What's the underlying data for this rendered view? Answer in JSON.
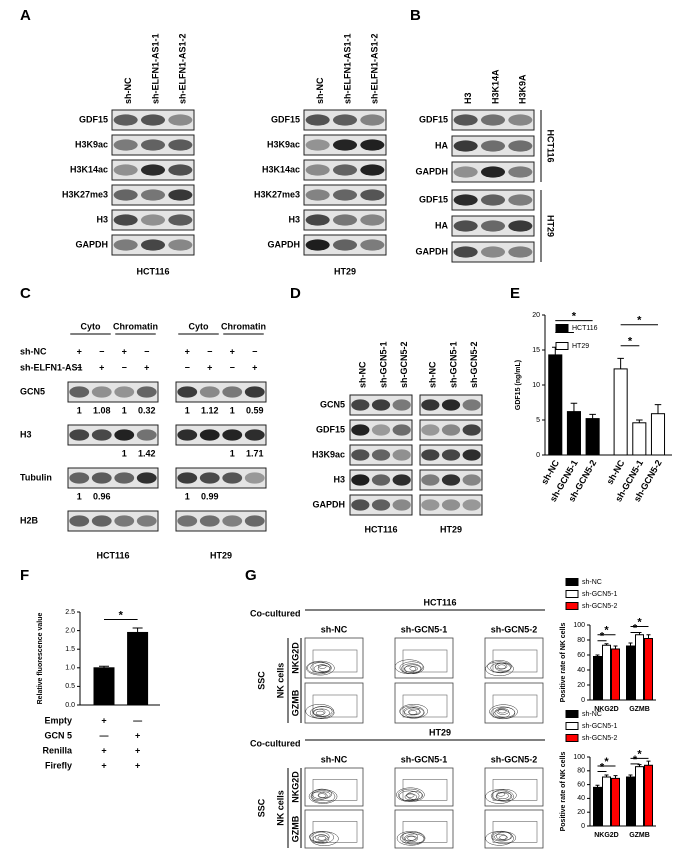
{
  "panels": {
    "A": {
      "label": "A",
      "blots": [
        {
          "columns": [
            "sh-NC",
            "sh-ELFN1-AS1-1",
            "sh-ELFN1-AS1-2"
          ],
          "rows": [
            "GDF15",
            "H3K9ac",
            "H3K14ac",
            "H3K27me3",
            "H3",
            "GAPDH"
          ],
          "cell_line": "HCT116"
        },
        {
          "columns": [
            "sh-NC",
            "sh-ELFN1-AS1-1",
            "sh-ELFN1-AS1-2"
          ],
          "rows": [
            "GDF15",
            "H3K9ac",
            "H3K14ac",
            "H3K27me3",
            "H3",
            "GAPDH"
          ],
          "cell_line": "HT29"
        }
      ]
    },
    "B": {
      "label": "B",
      "columns": [
        "H3",
        "H3K14A",
        "H3K9A"
      ],
      "groups": [
        {
          "rows": [
            "GDF15",
            "HA",
            "GAPDH"
          ],
          "cell_line": "HCT116"
        },
        {
          "rows": [
            "GDF15",
            "HA",
            "GAPDH"
          ],
          "cell_line": "HT29"
        }
      ]
    },
    "C": {
      "label": "C",
      "fractions": [
        "Cyto",
        "Chromatin"
      ],
      "conditions": [
        {
          "name": "sh-NC",
          "signs": [
            "+",
            "−",
            "+",
            "−"
          ]
        },
        {
          "name": "sh-ELFN1-AS1",
          "signs": [
            "−",
            "+",
            "−",
            "+"
          ]
        }
      ],
      "blots": [
        {
          "cell_line": "HCT116",
          "rows": [
            {
              "name": "GCN5",
              "cyto_quant": [
                1,
                1.08
              ],
              "chromatin_quant": [
                1,
                0.32
              ]
            },
            {
              "name": "H3",
              "chromatin_quant": [
                1,
                1.42
              ]
            },
            {
              "name": "Tubulin",
              "cyto_quant": [
                1,
                0.96
              ]
            },
            {
              "name": "H2B"
            }
          ]
        },
        {
          "cell_line": "HT29",
          "rows": [
            {
              "name": "GCN5",
              "cyto_quant": [
                1,
                1.12
              ],
              "chromatin_quant": [
                1,
                0.59
              ]
            },
            {
              "name": "H3",
              "chromatin_quant": [
                1,
                1.71
              ]
            },
            {
              "name": "Tubulin",
              "cyto_quant": [
                1,
                0.99
              ]
            },
            {
              "name": "H2B"
            }
          ]
        }
      ]
    },
    "D": {
      "label": "D",
      "columns": [
        "sh-NC",
        "sh-GCN5-1",
        "sh-GCN5-2"
      ],
      "rows": [
        "GCN5",
        "GDF15",
        "H3K9ac",
        "H3",
        "GAPDH"
      ],
      "cell_lines": [
        "HCT116",
        "HT29"
      ]
    },
    "E": {
      "label": "E"
    },
    "F": {
      "label": "F"
    },
    "G": {
      "label": "G",
      "co_cultured": "Co-cultured",
      "ssc": "SSC",
      "nk_cells": "NK cells",
      "markers": [
        "NKG2D",
        "GZMB"
      ],
      "columns": [
        "sh-NC",
        "sh-GCN5-1",
        "sh-GCN5-2"
      ],
      "cell_lines": [
        "HCT116",
        "HT29"
      ]
    }
  },
  "chart_data": [
    {
      "type": "bar",
      "ylabel": "GDF15 (ng/mL)",
      "categories": [
        "sh-NC",
        "sh-GCN5-1",
        "sh-GCN5-2"
      ],
      "series": [
        {
          "name": "HCT116",
          "color": "#000000",
          "values": [
            14.3,
            6.2,
            5.2
          ],
          "errors": [
            1.1,
            1.2,
            0.6
          ]
        },
        {
          "name": "HT29",
          "color": "#ffffff",
          "values": [
            12.3,
            4.6,
            5.9
          ],
          "errors": [
            1.5,
            0.4,
            1.3
          ]
        }
      ],
      "ylim": [
        0,
        20
      ],
      "yticks": [
        0,
        5,
        10,
        15,
        20
      ],
      "annotations": [
        "*",
        "*",
        "*",
        "*"
      ]
    },
    {
      "type": "bar",
      "ylabel": "Relative fluorescence value",
      "values": [
        1.0,
        1.95
      ],
      "errors": [
        0.04,
        0.12
      ],
      "color": "#000000",
      "ylim": [
        0,
        2.5
      ],
      "yticks": [
        {
          "value": 0,
          "label": "0.0"
        },
        {
          "value": 0.5,
          "label": "0.5"
        },
        {
          "value": 1,
          "label": "1.0"
        },
        {
          "value": 1.5,
          "label": "1.5"
        },
        {
          "value": 2,
          "label": "2.0"
        },
        {
          "value": 2.5,
          "label": "2.5"
        }
      ],
      "annotations": [
        "*"
      ],
      "conditions": [
        {
          "name": "Empty",
          "signs": [
            "+",
            "—"
          ]
        },
        {
          "name": "GCN 5",
          "signs": [
            "—",
            "+"
          ]
        },
        {
          "name": "Renilla",
          "signs": [
            "+",
            "+"
          ]
        },
        {
          "name": "Firefly",
          "signs": [
            "+",
            "+"
          ]
        }
      ]
    },
    {
      "type": "bar",
      "ylabel": "Positive rate of NK cells",
      "categories": [
        "NKG2D",
        "GZMB"
      ],
      "series": [
        {
          "name": "sh-NC",
          "color": "#000000",
          "values": [
            58,
            72
          ],
          "errors": [
            2,
            4
          ]
        },
        {
          "name": "sh-GCN5-1",
          "color": "#ffffff",
          "values": [
            73,
            87
          ],
          "errors": [
            2,
            3
          ]
        },
        {
          "name": "sh-GCN5-2",
          "color": "#ff0000",
          "values": [
            68,
            82
          ],
          "errors": [
            4,
            5
          ]
        }
      ],
      "ylim": [
        0,
        100
      ],
      "yticks": [
        0,
        20,
        40,
        60,
        80,
        100
      ],
      "annotations": [
        "*",
        "*",
        "*",
        "*"
      ]
    },
    {
      "type": "bar",
      "ylabel": "Positive rate of NK cells",
      "categories": [
        "NKG2D",
        "GZMB"
      ],
      "series": [
        {
          "name": "sh-NC",
          "color": "#000000",
          "values": [
            56,
            71
          ],
          "errors": [
            3,
            3
          ]
        },
        {
          "name": "sh-GCN5-1",
          "color": "#ffffff",
          "values": [
            71,
            86
          ],
          "errors": [
            3,
            3
          ]
        },
        {
          "name": "sh-GCN5-2",
          "color": "#ff0000",
          "values": [
            69,
            88
          ],
          "errors": [
            4,
            6
          ]
        }
      ],
      "ylim": [
        0,
        100
      ],
      "yticks": [
        0,
        20,
        40,
        60,
        80,
        100
      ],
      "annotations": [
        "*",
        "*",
        "*",
        "*"
      ]
    }
  ]
}
